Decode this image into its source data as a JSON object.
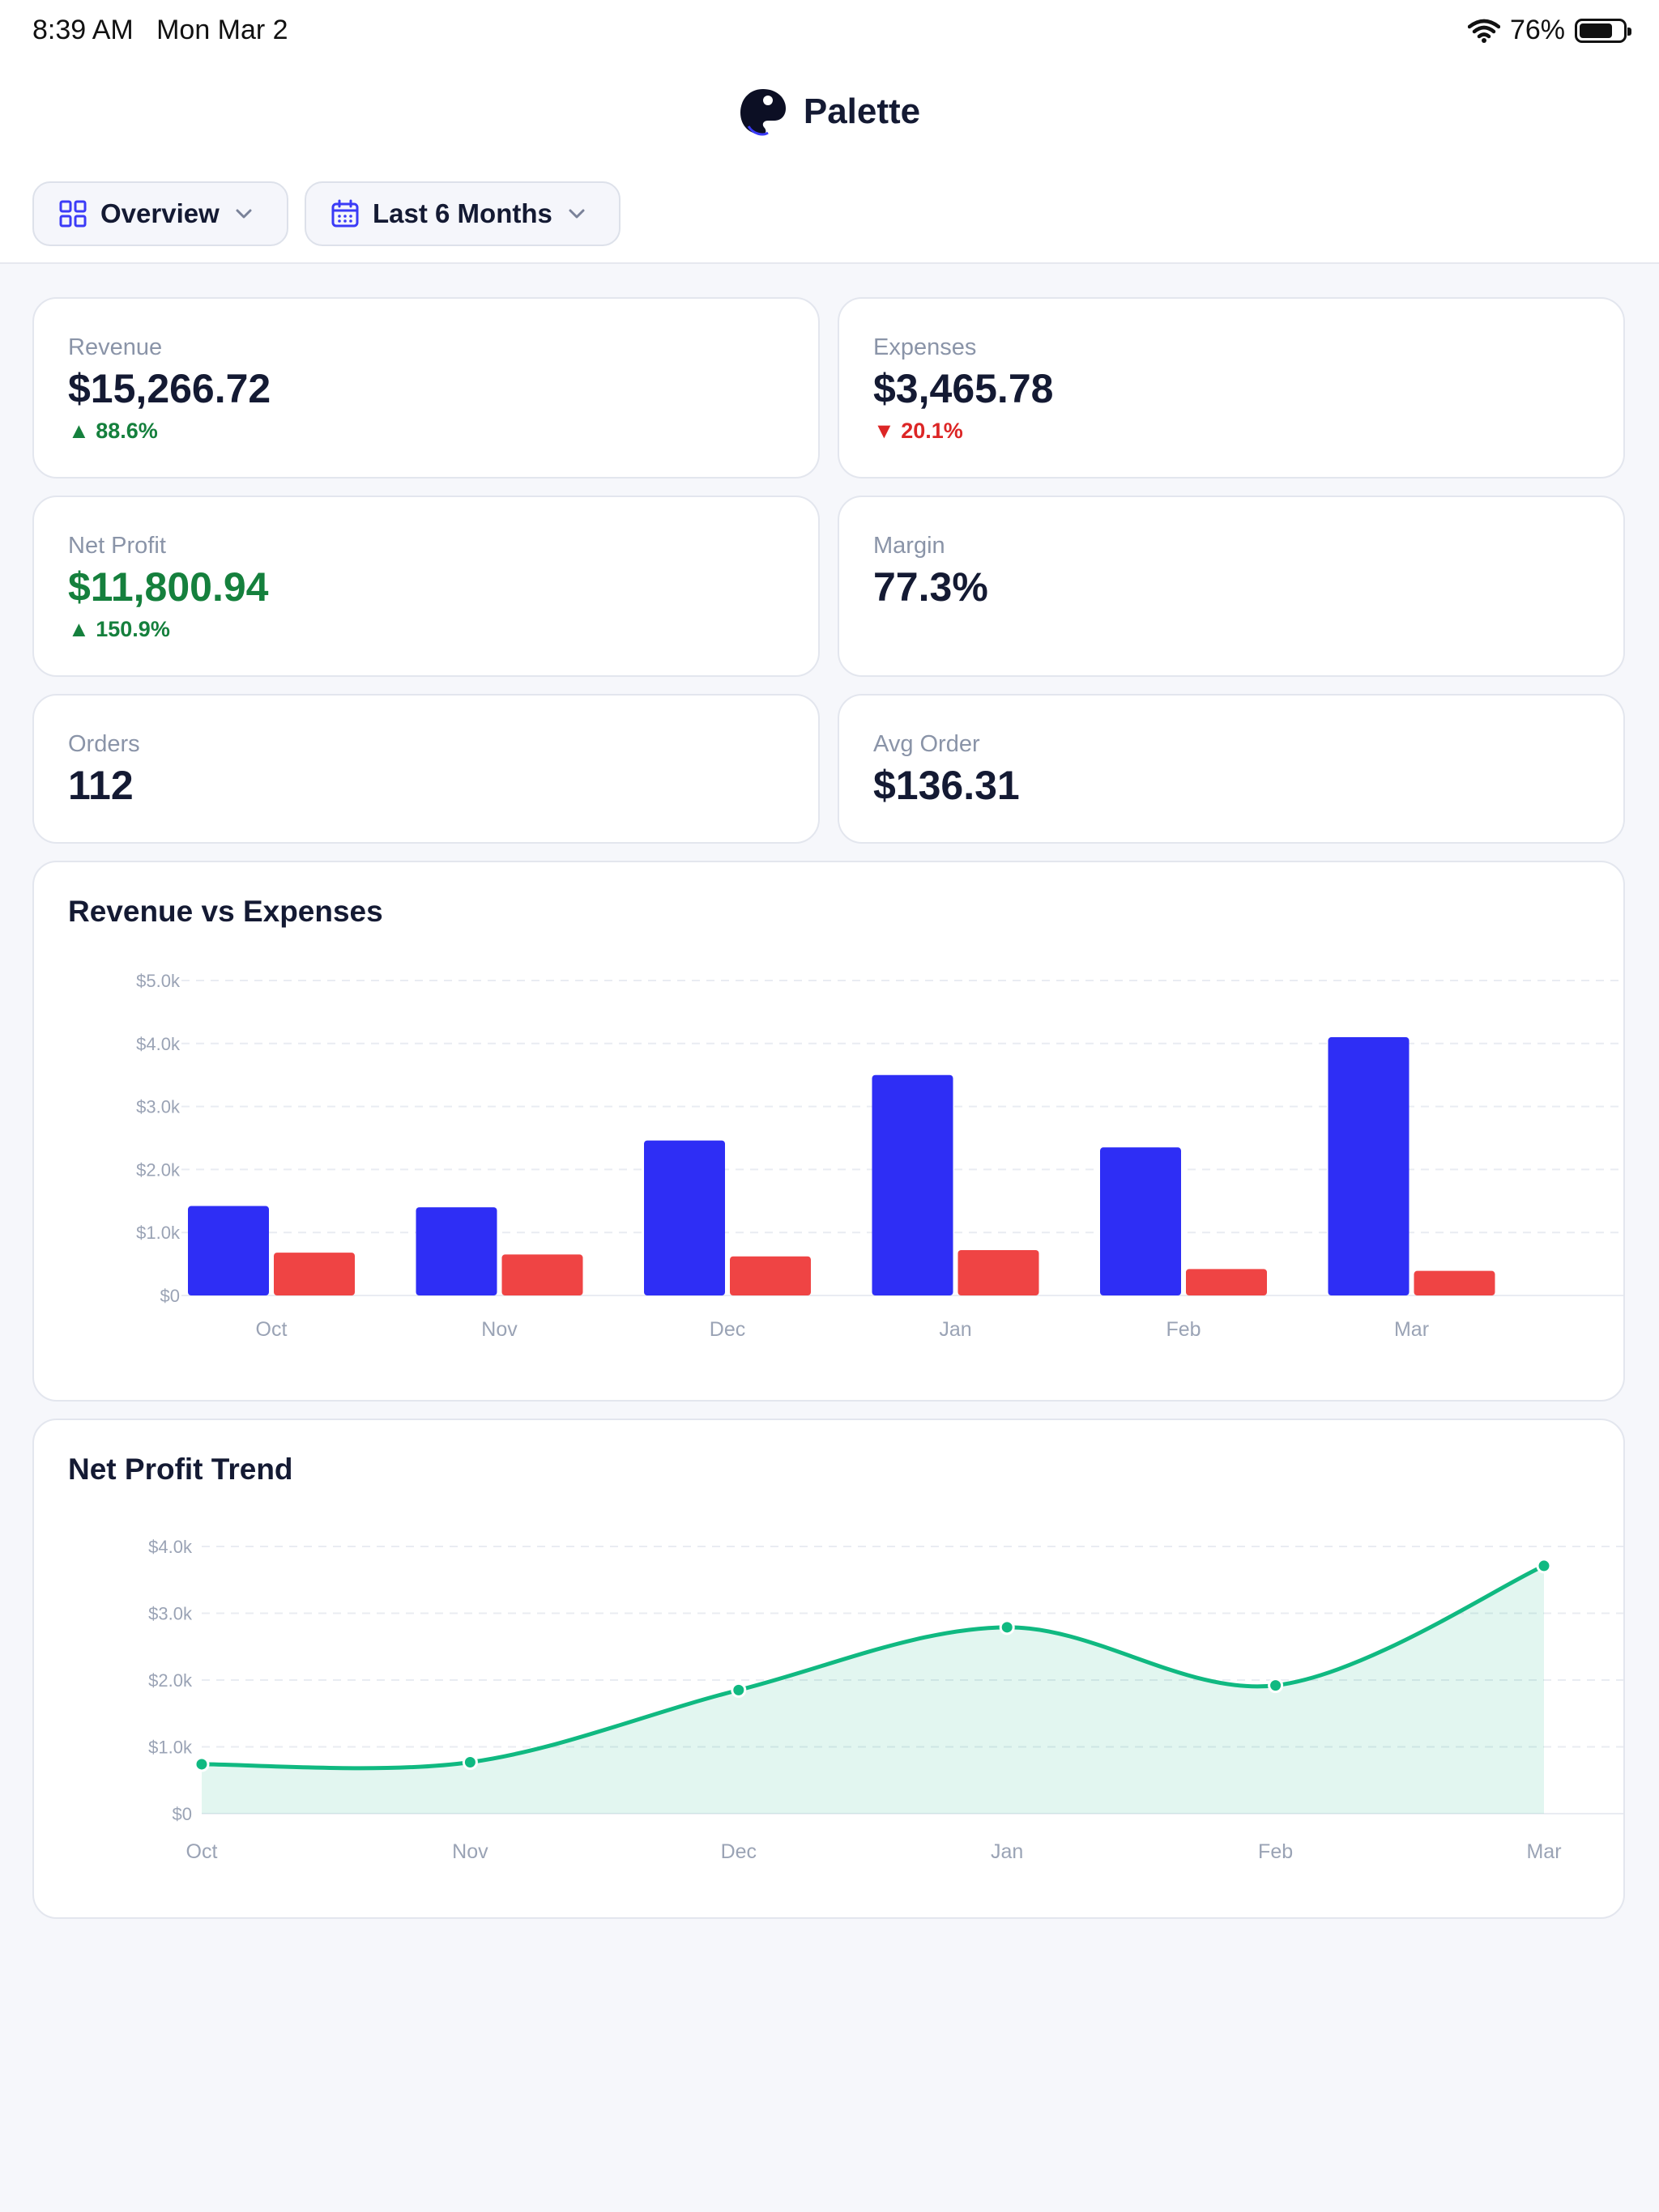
{
  "status_bar": {
    "time": "8:39 AM",
    "date": "Mon Mar 2",
    "battery": "76%",
    "battery_level": 0.76
  },
  "header": {
    "app_name": "Palette",
    "view_filter": "Overview",
    "range_filter": "Last 6 Months"
  },
  "stats": {
    "revenue": {
      "label": "Revenue",
      "value": "$15,266.72",
      "change": "88.6%",
      "direction": "up"
    },
    "expenses": {
      "label": "Expenses",
      "value": "$3,465.78",
      "change": "20.1%",
      "direction": "down"
    },
    "net_profit": {
      "label": "Net Profit",
      "value": "$11,800.94",
      "change": "150.9%",
      "direction": "up"
    },
    "margin": {
      "label": "Margin",
      "value": "77.3%"
    },
    "orders": {
      "label": "Orders",
      "value": "112"
    },
    "avg_order": {
      "label": "Avg Order",
      "value": "$136.31"
    }
  },
  "colors": {
    "revenue": "#2e2ef5",
    "expenses": "#ef4444",
    "profit": "#10b981",
    "positive": "#15803d",
    "negative": "#dc2626"
  },
  "chart_data": [
    {
      "type": "bar",
      "title": "Revenue vs Expenses",
      "categories": [
        "Oct",
        "Nov",
        "Dec",
        "Jan",
        "Feb",
        "Mar"
      ],
      "series": [
        {
          "values": [
            1420,
            1400,
            2460,
            3500,
            2350,
            4100
          ]
        },
        {
          "values": [
            680,
            650,
            620,
            720,
            420,
            390
          ]
        }
      ],
      "ylim": [
        0,
        5000
      ],
      "yticks": [
        "$0",
        "$1.0k",
        "$2.0k",
        "$3.0k",
        "$4.0k",
        "$5.0k"
      ],
      "grid": true
    },
    {
      "type": "area",
      "title": "Net Profit Trend",
      "categories": [
        "Oct",
        "Nov",
        "Dec",
        "Jan",
        "Feb",
        "Mar"
      ],
      "values": [
        740,
        770,
        1850,
        2790,
        1920,
        3710
      ],
      "ylim": [
        0,
        4000
      ],
      "yticks": [
        "$0",
        "$1.0k",
        "$2.0k",
        "$3.0k",
        "$4.0k"
      ],
      "grid": true
    }
  ]
}
